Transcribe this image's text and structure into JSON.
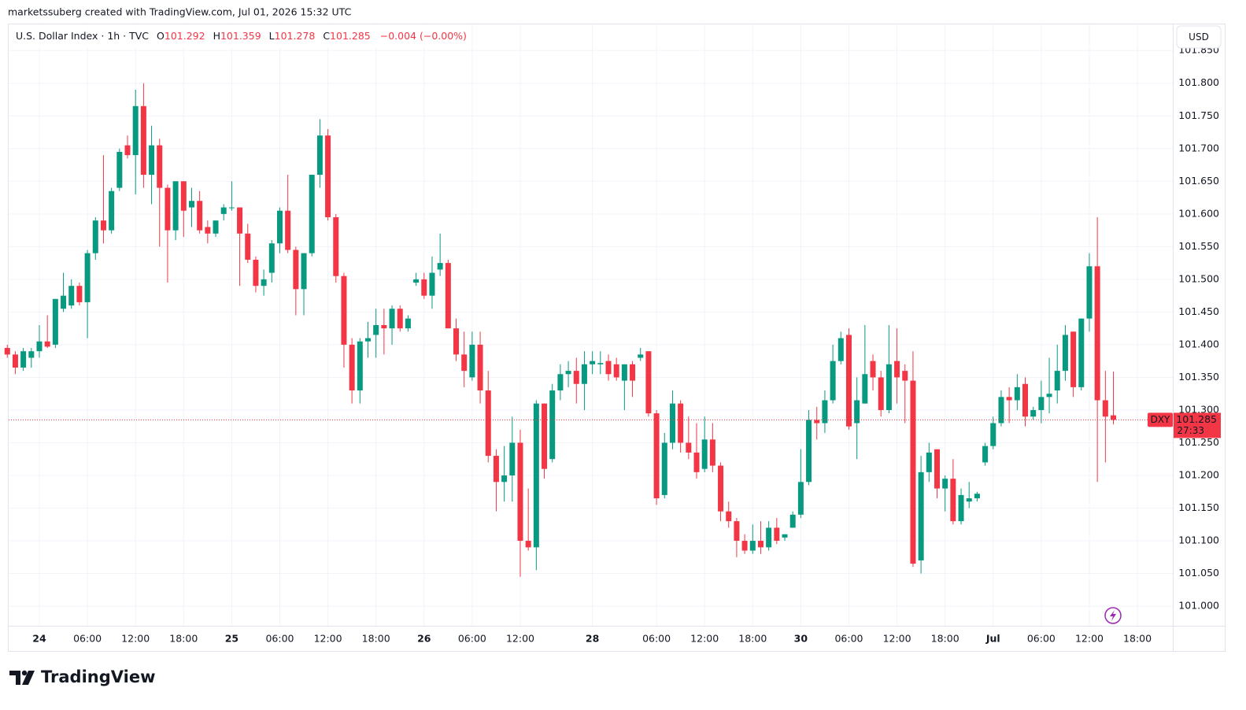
{
  "attribution": "marketssuberg created with TradingView.com, Jul 01, 2026 15:32 UTC",
  "brand": "TradingView",
  "chart_data": {
    "type": "candlestick",
    "title": "U.S. Dollar Index · 1h · TVC",
    "ohlc_labels": [
      "O",
      "H",
      "L",
      "C"
    ],
    "change": "−0.004 (−0.00%)",
    "currency": "USD",
    "symbol": "DXY",
    "countdown": "27:33",
    "up_color": "#089981",
    "down_color": "#f23645",
    "grid": true,
    "categories": [
      null,
      null,
      null,
      null,
      "24",
      null,
      null,
      null,
      null,
      null,
      "06:00",
      null,
      null,
      null,
      null,
      null,
      "12:00",
      null,
      null,
      null,
      null,
      null,
      "18:00",
      null,
      null,
      null,
      null,
      null,
      "25",
      null,
      null,
      null,
      null,
      null,
      "06:00",
      null,
      null,
      null,
      null,
      null,
      "12:00",
      null,
      null,
      null,
      null,
      null,
      "18:00",
      null,
      null,
      null,
      null,
      null,
      "26",
      null,
      null,
      null,
      null,
      null,
      "06:00",
      null,
      null,
      null,
      null,
      null,
      "12:00",
      null,
      null,
      null,
      null,
      null,
      null,
      null,
      null,
      "28",
      null,
      null,
      null,
      null,
      null,
      null,
      null,
      "06:00",
      null,
      null,
      null,
      null,
      null,
      "12:00",
      null,
      null,
      null,
      null,
      null,
      "18:00",
      null,
      null,
      null,
      null,
      null,
      "30",
      null,
      null,
      null,
      null,
      null,
      "06:00",
      null,
      null,
      null,
      null,
      null,
      "12:00",
      null,
      null,
      null,
      null,
      null,
      "18:00",
      null,
      null,
      null,
      null,
      null,
      "Jul",
      null,
      null,
      null,
      null,
      null,
      "06:00",
      null,
      null,
      null,
      null,
      null,
      "12:00",
      null,
      null,
      null,
      null,
      null,
      "18:00"
    ],
    "open": [
      101.395,
      101.385,
      101.365,
      101.38,
      101.39,
      101.405,
      101.4,
      101.455,
      101.46,
      101.49,
      101.465,
      101.54,
      101.59,
      101.575,
      101.64,
      101.705,
      101.69,
      101.765,
      101.66,
      101.705,
      101.64,
      101.575,
      101.65,
      101.61,
      101.62,
      101.58,
      101.57,
      101.6,
      101.61,
      101.61,
      101.57,
      101.53,
      101.49,
      101.51,
      101.555,
      101.605,
      101.545,
      101.485,
      101.54,
      101.66,
      101.72,
      101.595,
      101.505,
      101.4,
      101.33,
      101.405,
      101.415,
      101.43,
      101.425,
      101.455,
      101.425,
      101.495,
      101.5,
      101.475,
      101.515,
      101.525,
      101.425,
      101.385,
      101.35,
      101.4,
      101.33,
      101.23,
      101.19,
      101.2,
      101.25,
      101.1,
      101.09,
      101.31,
      101.225,
      101.33,
      101.355,
      101.36,
      101.34,
      101.37,
      101.37,
      101.375,
      101.37,
      101.345,
      101.37,
      101.38,
      101.39,
      101.295,
      101.17,
      101.25,
      101.31,
      101.25,
      101.235,
      101.21,
      101.255,
      101.215,
      101.145,
      101.13,
      101.1,
      101.085,
      101.1,
      101.09,
      101.12,
      101.105,
      101.12,
      101.14,
      101.19,
      101.285,
      101.28,
      101.315,
      101.375,
      101.415,
      101.28,
      101.31,
      101.375,
      101.35,
      101.3,
      101.375,
      101.36,
      101.345,
      101.07,
      101.205,
      101.24,
      101.18,
      101.195,
      101.13,
      101.16,
      101.165,
      101.22,
      101.245,
      101.28,
      101.32,
      101.315,
      101.34,
      101.29,
      101.3,
      101.32,
      101.33,
      101.36,
      101.42,
      101.335,
      101.44,
      101.52,
      101.315,
      101.292,
      null,
      null,
      null
    ],
    "high": [
      101.4,
      101.39,
      101.395,
      101.395,
      101.43,
      101.445,
      101.47,
      101.51,
      101.5,
      101.495,
      101.545,
      101.595,
      101.69,
      101.64,
      101.7,
      101.72,
      101.79,
      101.8,
      101.735,
      101.715,
      101.645,
      101.65,
      101.65,
      101.64,
      101.635,
      101.59,
      101.59,
      101.615,
      101.65,
      101.61,
      101.585,
      101.535,
      101.515,
      101.56,
      101.61,
      101.66,
      101.55,
      101.54,
      101.66,
      101.745,
      101.73,
      101.6,
      101.51,
      101.41,
      101.41,
      101.435,
      101.455,
      101.455,
      101.46,
      101.46,
      101.445,
      101.51,
      101.51,
      101.535,
      101.57,
      101.53,
      101.44,
      101.42,
      101.42,
      101.42,
      101.36,
      101.24,
      101.245,
      101.29,
      101.27,
      101.18,
      101.315,
      101.31,
      101.34,
      101.37,
      101.375,
      101.38,
      101.39,
      101.39,
      101.39,
      101.385,
      101.38,
      101.37,
      101.375,
      101.395,
      101.39,
      101.3,
      101.265,
      101.33,
      101.315,
      101.29,
      101.28,
      101.29,
      101.28,
      101.22,
      101.16,
      101.135,
      101.11,
      101.125,
      101.13,
      101.13,
      101.135,
      101.11,
      101.145,
      101.24,
      101.3,
      101.305,
      101.33,
      101.4,
      101.42,
      101.425,
      101.35,
      101.43,
      101.385,
      101.36,
      101.43,
      101.425,
      101.37,
      101.39,
      101.23,
      101.25,
      101.24,
      101.2,
      101.225,
      101.18,
      101.19,
      101.175,
      101.25,
      101.29,
      101.33,
      101.335,
      101.355,
      101.35,
      101.305,
      101.345,
      101.38,
      101.4,
      101.43,
      101.42,
      101.44,
      101.54,
      101.595,
      101.36,
      101.359,
      null,
      null,
      null
    ],
    "low": [
      101.38,
      101.355,
      101.36,
      101.365,
      101.38,
      101.395,
      101.395,
      101.45,
      101.455,
      101.46,
      101.41,
      101.53,
      101.555,
      101.57,
      101.635,
      101.685,
      101.63,
      101.64,
      101.615,
      101.55,
      101.495,
      101.56,
      101.565,
      101.58,
      101.57,
      101.555,
      101.565,
      101.59,
      101.605,
      101.49,
      101.525,
      101.48,
      101.475,
      101.495,
      101.54,
      101.54,
      101.445,
      101.445,
      101.535,
      101.64,
      101.59,
      101.495,
      101.365,
      101.31,
      101.31,
      101.38,
      101.38,
      101.385,
      101.4,
      101.42,
      101.42,
      101.49,
      101.47,
      101.455,
      101.505,
      101.425,
      101.375,
      101.335,
      101.345,
      101.31,
      101.22,
      101.145,
      101.16,
      101.16,
      101.045,
      101.085,
      101.055,
      101.195,
      101.22,
      101.315,
      101.335,
      101.31,
      101.3,
      101.355,
      101.355,
      101.345,
      101.345,
      101.3,
      101.32,
      101.375,
      101.29,
      101.155,
      101.165,
      101.24,
      101.235,
      101.225,
      101.195,
      101.205,
      101.205,
      101.13,
      101.12,
      101.075,
      101.08,
      101.08,
      101.08,
      101.085,
      101.095,
      101.1,
      101.12,
      101.135,
      101.185,
      101.255,
      101.265,
      101.31,
      101.37,
      101.27,
      101.225,
      101.31,
      101.33,
      101.29,
      101.295,
      101.31,
      101.28,
      101.06,
      101.05,
      101.19,
      101.165,
      101.145,
      101.125,
      101.125,
      101.15,
      101.16,
      101.215,
      101.24,
      101.275,
      101.28,
      101.3,
      101.275,
      101.285,
      101.28,
      101.295,
      101.31,
      101.345,
      101.32,
      101.33,
      101.42,
      101.19,
      101.22,
      101.278,
      null,
      null,
      null
    ],
    "close": [
      101.385,
      101.365,
      101.39,
      101.39,
      101.405,
      101.397,
      101.47,
      101.475,
      101.49,
      101.465,
      101.54,
      101.59,
      101.575,
      101.635,
      101.695,
      101.69,
      101.765,
      101.66,
      101.705,
      101.64,
      101.575,
      101.65,
      101.605,
      101.62,
      101.575,
      101.57,
      101.59,
      101.61,
      101.61,
      101.57,
      101.53,
      101.49,
      101.5,
      101.555,
      101.605,
      101.545,
      101.485,
      101.54,
      101.66,
      101.72,
      101.595,
      101.505,
      101.4,
      101.33,
      101.405,
      101.41,
      101.43,
      101.425,
      101.455,
      101.425,
      101.44,
      101.5,
      101.475,
      101.51,
      101.525,
      101.425,
      101.385,
      101.36,
      101.4,
      101.33,
      101.23,
      101.19,
      101.2,
      101.25,
      101.1,
      101.09,
      101.31,
      101.21,
      101.33,
      101.355,
      101.36,
      101.34,
      101.37,
      101.375,
      101.372,
      101.355,
      101.35,
      101.37,
      101.345,
      101.385,
      101.295,
      101.165,
      101.25,
      101.31,
      101.25,
      101.235,
      101.205,
      101.255,
      101.215,
      101.145,
      101.13,
      101.1,
      101.085,
      101.1,
      101.09,
      101.12,
      101.1,
      101.11,
      101.14,
      101.19,
      101.285,
      101.28,
      101.315,
      101.375,
      101.41,
      101.275,
      101.315,
      101.355,
      101.35,
      101.3,
      101.37,
      101.35,
      101.345,
      101.065,
      101.205,
      101.235,
      101.18,
      101.195,
      101.13,
      101.17,
      101.165,
      101.172,
      101.245,
      101.28,
      101.32,
      101.315,
      101.335,
      101.29,
      101.3,
      101.32,
      101.325,
      101.36,
      101.415,
      101.335,
      101.44,
      101.52,
      101.315,
      101.29,
      101.285,
      null,
      null,
      null
    ],
    "ylim": [
      100.97,
      101.89
    ],
    "yticks": [
      {
        "value": 101.0,
        "label": "101.000"
      },
      {
        "value": 101.05,
        "label": "101.050"
      },
      {
        "value": 101.1,
        "label": "101.100"
      },
      {
        "value": 101.15,
        "label": "101.150"
      },
      {
        "value": 101.2,
        "label": "101.200"
      },
      {
        "value": 101.25,
        "label": "101.250"
      },
      {
        "value": 101.3,
        "label": "101.300"
      },
      {
        "value": 101.35,
        "label": "101.350"
      },
      {
        "value": 101.4,
        "label": "101.400"
      },
      {
        "value": 101.45,
        "label": "101.450"
      },
      {
        "value": 101.5,
        "label": "101.500"
      },
      {
        "value": 101.55,
        "label": "101.550"
      },
      {
        "value": 101.6,
        "label": "101.600"
      },
      {
        "value": 101.65,
        "label": "101.650"
      },
      {
        "value": 101.7,
        "label": "101.700"
      },
      {
        "value": 101.75,
        "label": "101.750"
      },
      {
        "value": 101.8,
        "label": "101.800"
      },
      {
        "value": 101.85,
        "label": "101.850"
      }
    ]
  }
}
